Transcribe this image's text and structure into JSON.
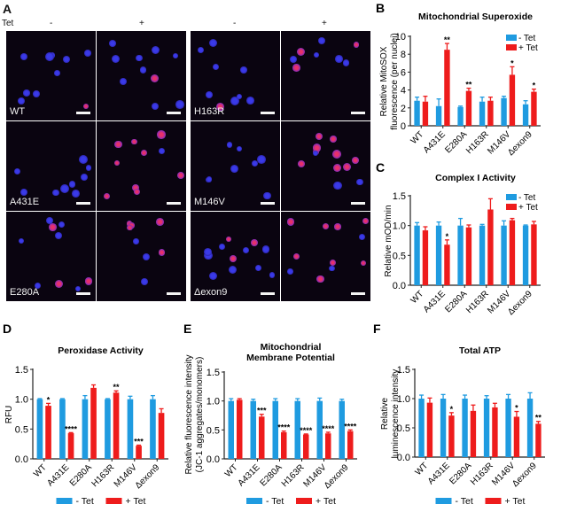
{
  "figure": {
    "panel_a": {
      "letter": "A",
      "tet_label": "Tet",
      "column_headers": [
        "-",
        "+",
        "-",
        "+"
      ],
      "rows": [
        {
          "left": "WT",
          "right": "H163R"
        },
        {
          "left": "A431E",
          "right": "M146V"
        },
        {
          "left": "E280A",
          "right": "Δexon9"
        }
      ],
      "colors": {
        "nucleus": "#3a3ae8",
        "mitosox": "#e8306a",
        "background": "#0a0410"
      }
    },
    "legend": {
      "minus": "- Tet",
      "plus": "+ Tet"
    },
    "colors": {
      "minus_tet": "#1f9be0",
      "plus_tet": "#ee1c1c"
    }
  },
  "chart_data": [
    {
      "id": "B",
      "letter": "B",
      "type": "bar",
      "title": "Mitochondrial Superoxide",
      "xlabel": "",
      "ylabel": [
        "Relative MitoSOX",
        "fluorescence (per nuclei)"
      ],
      "categories": [
        "WT",
        "A431E",
        "E280A",
        "H163R",
        "M146V",
        "Δexon9"
      ],
      "ylim": [
        0,
        10
      ],
      "yticks": [
        0,
        2,
        4,
        6,
        8,
        10
      ],
      "ytick_labels": [
        "0",
        "2",
        "4",
        "6",
        "8",
        "10"
      ],
      "legend_position": "top-right",
      "series": [
        {
          "name": "- Tet",
          "values": [
            2.8,
            2.2,
            2.1,
            2.7,
            3.1,
            2.4
          ],
          "errors": [
            0.4,
            0.8,
            0.1,
            0.5,
            0.2,
            0.4
          ]
        },
        {
          "name": "+ Tet",
          "values": [
            2.7,
            8.5,
            3.9,
            2.8,
            5.7,
            3.8
          ],
          "errors": [
            0.6,
            0.7,
            0.3,
            0.4,
            0.9,
            0.3
          ]
        }
      ],
      "significance": [
        "",
        "**",
        "**",
        "",
        "*",
        "*"
      ]
    },
    {
      "id": "C",
      "letter": "C",
      "type": "bar",
      "title": "Complex I Activity",
      "xlabel": "",
      "ylabel": [
        "Relative mOD/min"
      ],
      "categories": [
        "WT",
        "A431E",
        "E280A",
        "H163R",
        "M146V",
        "Δexon9"
      ],
      "ylim": [
        0,
        1.5
      ],
      "yticks": [
        0,
        0.5,
        1.0,
        1.5
      ],
      "ytick_labels": [
        "0.0",
        "0.5",
        "1.0",
        "1.5"
      ],
      "legend_position": "top-right",
      "series": [
        {
          "name": "- Tet",
          "values": [
            1.0,
            1.0,
            1.0,
            1.0,
            1.0,
            1.0
          ],
          "errors": [
            0.05,
            0.06,
            0.12,
            0.02,
            0.08,
            0.01
          ]
        },
        {
          "name": "+ Tet",
          "values": [
            0.92,
            0.68,
            0.97,
            1.27,
            1.09,
            1.02
          ],
          "errors": [
            0.06,
            0.08,
            0.04,
            0.18,
            0.03,
            0.05
          ]
        }
      ],
      "significance": [
        "",
        "*",
        "",
        "",
        "",
        ""
      ]
    },
    {
      "id": "D",
      "letter": "D",
      "type": "bar",
      "title": "Peroxidase Activity",
      "xlabel": "",
      "ylabel": [
        "RFU"
      ],
      "categories": [
        "WT",
        "A431E",
        "E280A",
        "H163R",
        "M146V",
        "Δexon9"
      ],
      "ylim": [
        0,
        1.5
      ],
      "yticks": [
        0,
        0.5,
        1.0,
        1.5
      ],
      "ytick_labels": [
        "0.0",
        "0.5",
        "1.0",
        "1.5"
      ],
      "legend_position": "bottom",
      "series": [
        {
          "name": "- Tet",
          "values": [
            1.0,
            1.0,
            1.0,
            1.0,
            1.0,
            1.0
          ],
          "errors": [
            0.01,
            0.01,
            0.06,
            0.01,
            0.05,
            0.06
          ]
        },
        {
          "name": "+ Tet",
          "values": [
            0.89,
            0.43,
            1.19,
            1.11,
            0.22,
            0.77
          ],
          "errors": [
            0.04,
            0.01,
            0.05,
            0.03,
            0.01,
            0.07
          ]
        }
      ],
      "significance": [
        "*",
        "****",
        "",
        "**",
        "***",
        ""
      ]
    },
    {
      "id": "E",
      "letter": "E",
      "type": "bar",
      "title": "Mitochondrial\nMembrane Potential",
      "xlabel": "",
      "ylabel": [
        "Relative fluorescence intensity",
        "(JC-1 aggregates/monomers)"
      ],
      "categories": [
        "WT",
        "A431E",
        "E280A",
        "H163R",
        "M146V",
        "Δexon9"
      ],
      "ylim": [
        0,
        1.5
      ],
      "yticks": [
        0,
        0.5,
        1.0,
        1.5
      ],
      "ytick_labels": [
        "0.0",
        "0.5",
        "1.0",
        "1.5"
      ],
      "legend_position": "bottom",
      "series": [
        {
          "name": "- Tet",
          "values": [
            1.0,
            1.0,
            1.0,
            1.0,
            1.0,
            1.0
          ],
          "errors": [
            0.04,
            0.03,
            0.04,
            0.04,
            0.05,
            0.03
          ]
        },
        {
          "name": "+ Tet",
          "values": [
            1.02,
            0.73,
            0.46,
            0.42,
            0.44,
            0.48
          ],
          "errors": [
            0.02,
            0.04,
            0.02,
            0.01,
            0.02,
            0.02
          ]
        }
      ],
      "significance": [
        "",
        "***",
        "****",
        "****",
        "****",
        "****"
      ]
    },
    {
      "id": "F",
      "letter": "F",
      "type": "bar",
      "title": "Total ATP",
      "xlabel": "",
      "ylabel": [
        "Relative",
        "luminescence intensity"
      ],
      "categories": [
        "WT",
        "A431E",
        "E280A",
        "H163R",
        "M146V",
        "Δexon9"
      ],
      "ylim": [
        0,
        1.5
      ],
      "yticks": [
        0,
        0.5,
        1.0,
        1.5
      ],
      "ytick_labels": [
        "0.0",
        "0.5",
        "1.0",
        "1.5"
      ],
      "legend_position": "bottom",
      "series": [
        {
          "name": "- Tet",
          "values": [
            1.0,
            1.0,
            1.0,
            1.0,
            1.0,
            1.0
          ],
          "errors": [
            0.06,
            0.07,
            0.06,
            0.05,
            0.07,
            0.1
          ]
        },
        {
          "name": "+ Tet",
          "values": [
            0.93,
            0.71,
            0.79,
            0.85,
            0.69,
            0.57
          ],
          "errors": [
            0.08,
            0.05,
            0.1,
            0.07,
            0.09,
            0.04
          ]
        }
      ],
      "significance": [
        "",
        "*",
        "",
        "",
        "*",
        "**"
      ]
    }
  ]
}
